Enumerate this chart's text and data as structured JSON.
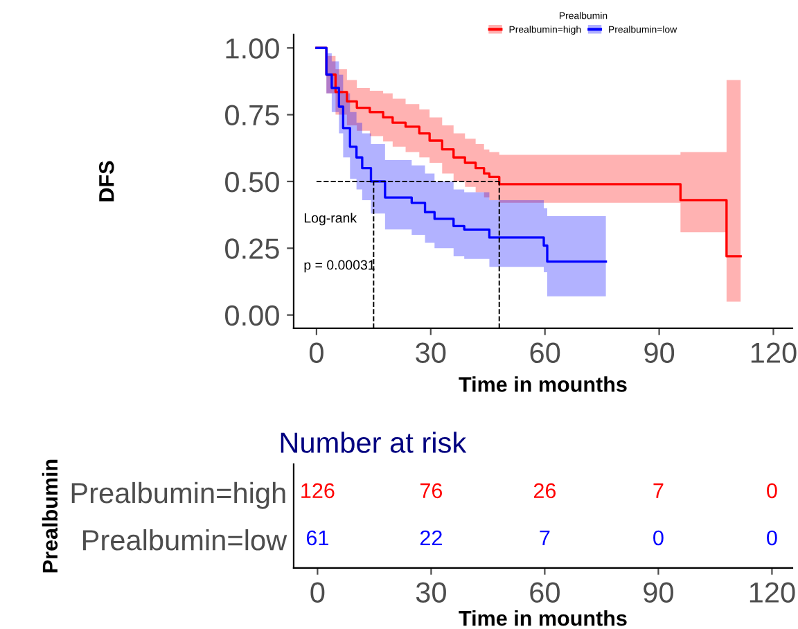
{
  "chart_data": [
    {
      "type": "step",
      "xlabel": "Time in mounths",
      "ylabel": "DFS",
      "legend_title": "Prealbumin",
      "legend": "top right",
      "grid": false,
      "xlim": [
        -6,
        125
      ],
      "ylim": [
        -0.05,
        1.05
      ],
      "xticks": [
        0,
        30,
        60,
        90,
        120
      ],
      "yticks": [
        {
          "value": 0,
          "label": "0.00"
        },
        {
          "value": 0.25,
          "label": "0.25"
        },
        {
          "value": 0.5,
          "label": "0.50"
        },
        {
          "value": 0.75,
          "label": "0.75"
        },
        {
          "value": 1,
          "label": "1.00"
        }
      ],
      "series": [
        {
          "name": "Prealbumin=high",
          "color": "#ff0000",
          "x": [
            0,
            2.6,
            5,
            8,
            10.6,
            14,
            17.5,
            20,
            23.4,
            27,
            29.7,
            33,
            36,
            39,
            41.8,
            44,
            45.4,
            48,
            95.6,
            107.7,
            111.4
          ],
          "values": [
            1,
            0.9,
            0.835,
            0.8,
            0.776,
            0.76,
            0.74,
            0.72,
            0.705,
            0.68,
            0.653,
            0.62,
            0.59,
            0.57,
            0.55,
            0.53,
            0.517,
            0.49,
            0.43,
            0.22,
            0.22
          ],
          "lower": [
            1,
            0.83,
            0.75,
            0.71,
            0.69,
            0.67,
            0.65,
            0.63,
            0.61,
            0.59,
            0.57,
            0.53,
            0.5,
            0.48,
            0.46,
            0.44,
            0.43,
            0.42,
            0.31,
            0.05,
            0.05
          ],
          "upper": [
            1,
            0.97,
            0.92,
            0.88,
            0.85,
            0.84,
            0.83,
            0.81,
            0.79,
            0.77,
            0.74,
            0.71,
            0.68,
            0.66,
            0.64,
            0.62,
            0.61,
            0.6,
            0.61,
            0.88,
            0.88
          ]
        },
        {
          "name": "Prealbumin=low",
          "color": "#0000ff",
          "x": [
            0,
            2.6,
            4,
            5.9,
            7,
            8.8,
            10.5,
            12,
            14.3,
            18,
            25,
            28.5,
            31,
            36,
            38.8,
            45.4,
            59.7,
            60.6,
            76
          ],
          "values": [
            1,
            0.9,
            0.85,
            0.78,
            0.7,
            0.63,
            0.59,
            0.55,
            0.5,
            0.44,
            0.42,
            0.385,
            0.36,
            0.333,
            0.32,
            0.29,
            0.26,
            0.2,
            0.2
          ],
          "lower": [
            1,
            0.83,
            0.76,
            0.68,
            0.59,
            0.51,
            0.47,
            0.43,
            0.38,
            0.32,
            0.3,
            0.27,
            0.25,
            0.22,
            0.21,
            0.18,
            0.16,
            0.07,
            0.07
          ],
          "upper": [
            1,
            0.98,
            0.95,
            0.9,
            0.83,
            0.76,
            0.72,
            0.68,
            0.64,
            0.58,
            0.56,
            0.53,
            0.5,
            0.47,
            0.46,
            0.43,
            0.4,
            0.37,
            0.37
          ]
        }
      ],
      "ref_lines": [
        {
          "axis": "y",
          "value": 0.5,
          "line_style": "dashed",
          "color": "#000000"
        },
        {
          "axis": "x",
          "value": 15,
          "line_style": "dashed",
          "color": "#000000"
        },
        {
          "axis": "x",
          "value": 48,
          "line_style": "dashed",
          "color": "#000000"
        }
      ],
      "annotations": [
        "Log-rank",
        "p = 0.00031"
      ]
    },
    {
      "type": "heatmap",
      "title": "Number at risk",
      "xlabel": "Time in mounths",
      "ylabel": "Prealbumin",
      "categories": [
        "0",
        "30",
        "60",
        "90",
        "120"
      ],
      "y_categories": [
        "Prealbumin=high",
        "Prealbumin=low"
      ],
      "colors": [
        "#ff0000",
        "#0000ff"
      ],
      "data_labels": true,
      "cells": [
        [
          126,
          76,
          26,
          7,
          0
        ],
        [
          61,
          22,
          7,
          0,
          0
        ]
      ]
    }
  ]
}
